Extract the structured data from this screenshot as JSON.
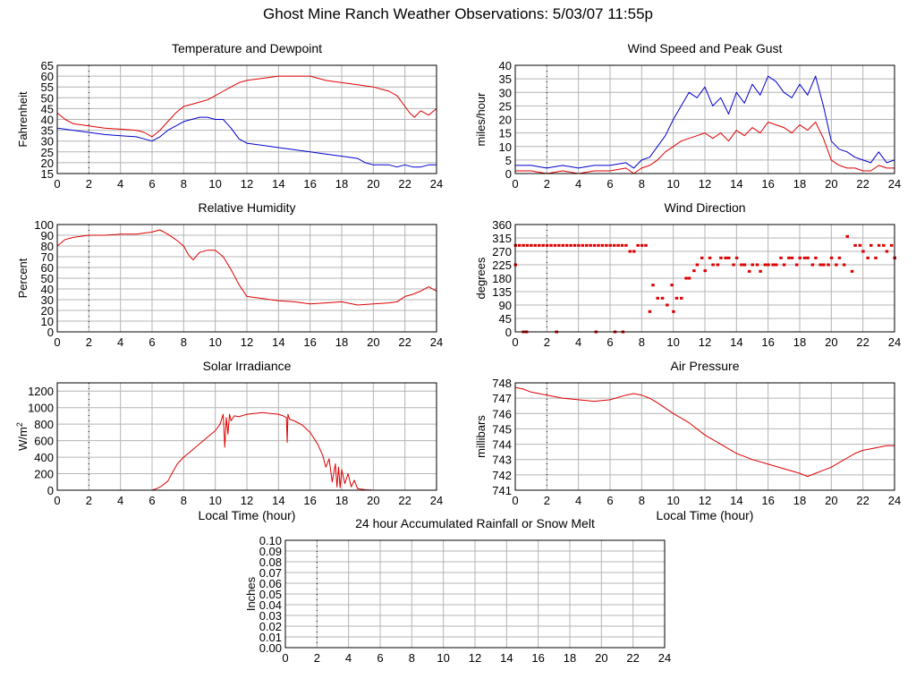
{
  "page": {
    "title": "Ghost Mine Ranch Weather Observations: 5/03/07 11:55p"
  },
  "colors": {
    "red": "#dd0000",
    "blue": "#0000cc",
    "grid": "#b4b4b4"
  },
  "chart_data": [
    {
      "id": "temperature",
      "type": "line",
      "title": "Temperature and Dewpoint",
      "ylabel": "Fahrenheit",
      "xlabel": "",
      "xlim": [
        0,
        24
      ],
      "ylim": [
        15,
        65
      ],
      "xticks": [
        0,
        2,
        4,
        6,
        8,
        10,
        12,
        14,
        16,
        18,
        20,
        22,
        24
      ],
      "yticks": [
        15,
        20,
        25,
        30,
        35,
        40,
        45,
        50,
        55,
        60,
        65
      ],
      "series": [
        {
          "color": "#dd0000",
          "x": [
            0,
            0.5,
            1,
            2,
            3,
            4,
            5,
            5.5,
            6,
            6.5,
            7,
            7.5,
            8,
            8.5,
            9,
            9.5,
            10,
            10.5,
            11,
            11.5,
            12,
            13,
            14,
            15,
            16,
            17,
            18,
            19,
            20,
            20.5,
            21,
            21.5,
            21.8,
            22,
            22.3,
            22.6,
            23,
            23.5,
            24
          ],
          "y": [
            43,
            40,
            38,
            37,
            36,
            35.5,
            35,
            34,
            32,
            35,
            39,
            43,
            46,
            47,
            48,
            49,
            51,
            53,
            55,
            57,
            58,
            59,
            60,
            60,
            60,
            58,
            57,
            56,
            55,
            54,
            53,
            51,
            48,
            46,
            43,
            41,
            44,
            42,
            45
          ]
        },
        {
          "color": "#0000cc",
          "x": [
            0,
            1,
            2,
            3,
            4,
            5,
            5.5,
            6,
            6.5,
            7,
            7.5,
            8,
            8.5,
            9,
            9.5,
            10,
            10.5,
            11,
            11.5,
            12,
            13,
            14,
            15,
            16,
            17,
            18,
            19,
            19.5,
            20,
            21,
            21.5,
            22,
            22.5,
            23,
            23.5,
            24
          ],
          "y": [
            36,
            35,
            34,
            33,
            32.5,
            32,
            31,
            30,
            32,
            35,
            37,
            39,
            40,
            41,
            41,
            40,
            40,
            36,
            31,
            29,
            28,
            27,
            26,
            25,
            24,
            23,
            22,
            20,
            19,
            19,
            18,
            19,
            18,
            18,
            19,
            19
          ]
        }
      ]
    },
    {
      "id": "wind-speed",
      "type": "line",
      "title": "Wind Speed and Peak Gust",
      "ylabel": "miles/hour",
      "xlabel": "",
      "xlim": [
        0,
        24
      ],
      "ylim": [
        0,
        40
      ],
      "xticks": [
        0,
        2,
        4,
        6,
        8,
        10,
        12,
        14,
        16,
        18,
        20,
        22,
        24
      ],
      "yticks": [
        0,
        5,
        10,
        15,
        20,
        25,
        30,
        35,
        40
      ],
      "series": [
        {
          "color": "#0000cc",
          "x": [
            0,
            1,
            2,
            3,
            4,
            5,
            6,
            7,
            7.5,
            8,
            8.5,
            9,
            9.5,
            10,
            10.5,
            11,
            11.5,
            12,
            12.5,
            13,
            13.5,
            14,
            14.5,
            15,
            15.5,
            16,
            16.5,
            17,
            17.5,
            18,
            18.5,
            19,
            19.5,
            20,
            20.5,
            21,
            21.5,
            22,
            22.5,
            23,
            23.5,
            24
          ],
          "y": [
            3,
            3,
            2,
            3,
            2,
            3,
            3,
            4,
            2,
            5,
            6,
            10,
            14,
            20,
            25,
            30,
            28,
            32,
            25,
            28,
            22,
            30,
            26,
            33,
            29,
            36,
            34,
            30,
            28,
            33,
            29,
            36,
            25,
            12,
            9,
            8,
            6,
            5,
            4,
            8,
            4,
            5
          ]
        },
        {
          "color": "#dd0000",
          "x": [
            0,
            1,
            2,
            3,
            4,
            5,
            6,
            7,
            7.5,
            8,
            8.5,
            9,
            9.5,
            10,
            10.5,
            11,
            11.5,
            12,
            12.5,
            13,
            13.5,
            14,
            14.5,
            15,
            15.5,
            16,
            16.5,
            17,
            17.5,
            18,
            18.5,
            19,
            19.5,
            20,
            20.5,
            21,
            21.5,
            22,
            22.5,
            23,
            23.5,
            24
          ],
          "y": [
            1,
            1,
            0,
            1,
            0,
            1,
            1,
            2,
            0,
            2,
            3,
            5,
            8,
            10,
            12,
            13,
            14,
            15,
            13,
            15,
            12,
            16,
            14,
            17,
            15,
            19,
            18,
            17,
            15,
            18,
            16,
            19,
            13,
            5,
            3,
            2,
            2,
            1,
            1,
            3,
            2,
            2
          ]
        }
      ]
    },
    {
      "id": "humidity",
      "type": "line",
      "title": "Relative Humidity",
      "ylabel": "Percent",
      "xlabel": "",
      "xlim": [
        0,
        24
      ],
      "ylim": [
        0,
        100
      ],
      "xticks": [
        0,
        2,
        4,
        6,
        8,
        10,
        12,
        14,
        16,
        18,
        20,
        22,
        24
      ],
      "yticks": [
        0,
        10,
        20,
        30,
        40,
        50,
        60,
        70,
        80,
        90,
        100
      ],
      "series": [
        {
          "color": "#dd0000",
          "x": [
            0,
            0.5,
            1,
            2,
            3,
            4,
            5,
            6,
            6.5,
            7,
            7.5,
            8,
            8.3,
            8.6,
            9,
            9.5,
            10,
            10.5,
            11,
            11.5,
            12,
            13,
            14,
            15,
            16,
            17,
            18,
            19,
            20,
            21,
            21.5,
            22,
            22.5,
            23,
            23.5,
            24
          ],
          "y": [
            80,
            86,
            88,
            90,
            90,
            91,
            91,
            93,
            95,
            91,
            86,
            80,
            72,
            67,
            74,
            76,
            76,
            70,
            58,
            44,
            33,
            31,
            29,
            28,
            26,
            27,
            28,
            25,
            26,
            27,
            28,
            33,
            35,
            38,
            42,
            38
          ]
        }
      ]
    },
    {
      "id": "wind-direction",
      "type": "scatter",
      "title": "Wind Direction",
      "ylabel": "degrees",
      "xlabel": "",
      "xlim": [
        0,
        24
      ],
      "ylim": [
        0,
        360
      ],
      "xticks": [
        0,
        2,
        4,
        6,
        8,
        10,
        12,
        14,
        16,
        18,
        20,
        22,
        24
      ],
      "yticks": [
        0,
        45,
        90,
        135,
        180,
        225,
        270,
        315,
        360
      ],
      "series": [
        {
          "color": "#dd0000",
          "x": [
            0,
            0.25,
            0.5,
            0.75,
            1,
            1.25,
            1.5,
            1.75,
            2,
            2.25,
            2.5,
            2.75,
            3,
            3.25,
            3.5,
            3.75,
            4,
            4.25,
            4.5,
            4.75,
            5,
            5.25,
            5.5,
            5.75,
            6,
            6.25,
            6.5,
            6.75,
            7,
            7.25,
            7.5,
            7.75,
            8,
            8.25,
            0.5,
            0.7,
            2.6,
            5.1,
            6.3,
            6.8,
            8.5,
            8.7,
            9,
            9.3,
            9.6,
            9.9,
            10,
            10.2,
            10.5,
            10.8,
            11,
            11.3,
            11.5,
            11.8,
            12,
            12.3,
            12.5,
            12.8,
            13,
            13.3,
            13.5,
            13.8,
            14,
            14.3,
            14.5,
            14.8,
            15,
            15.3,
            15.5,
            15.8,
            16,
            16.3,
            16.5,
            16.8,
            17,
            17.3,
            17.5,
            17.8,
            18,
            18.3,
            18.5,
            18.8,
            19,
            19.3,
            19.5,
            19.8,
            20,
            20.3,
            20.5,
            20.8,
            21,
            21.3,
            21.5,
            21.8,
            22,
            22.3,
            22.5,
            22.8,
            23,
            23.3,
            23.5,
            23.8,
            24,
            0,
            24
          ],
          "y": [
            290,
            290,
            290,
            290,
            290,
            290,
            290,
            290,
            290,
            290,
            290,
            290,
            290,
            290,
            290,
            290,
            290,
            290,
            290,
            290,
            290,
            290,
            290,
            290,
            290,
            290,
            290,
            290,
            290,
            270,
            270,
            290,
            290,
            290,
            0,
            0,
            0,
            0,
            0,
            0,
            68,
            157,
            113,
            113,
            90,
            157,
            68,
            113,
            113,
            180,
            180,
            205,
            225,
            248,
            205,
            248,
            225,
            225,
            248,
            248,
            248,
            225,
            248,
            225,
            225,
            203,
            225,
            225,
            203,
            225,
            225,
            225,
            225,
            248,
            225,
            248,
            248,
            225,
            248,
            248,
            248,
            225,
            248,
            225,
            225,
            225,
            248,
            225,
            248,
            225,
            320,
            203,
            290,
            290,
            270,
            248,
            290,
            248,
            290,
            290,
            270,
            290,
            248,
            225,
            248
          ]
        }
      ]
    },
    {
      "id": "solar",
      "type": "line",
      "title": "Solar Irradiance",
      "ylabel": "W/m",
      "ylabel_sup": "2",
      "xlabel": "Local Time (hour)",
      "xlim": [
        0,
        24
      ],
      "ylim": [
        0,
        1300
      ],
      "xticks": [
        0,
        2,
        4,
        6,
        8,
        10,
        12,
        14,
        16,
        18,
        20,
        22,
        24
      ],
      "yticks": [
        0,
        200,
        400,
        600,
        800,
        1000,
        1200
      ],
      "series": [
        {
          "color": "#dd0000",
          "x": [
            0,
            6,
            6.3,
            6.6,
            7,
            7.3,
            7.6,
            8,
            8.5,
            9,
            9.5,
            10,
            10.3,
            10.5,
            10.6,
            10.7,
            10.8,
            10.9,
            11,
            11.2,
            11.5,
            12,
            12.5,
            13,
            13.5,
            14,
            14.3,
            14.5,
            14.55,
            14.6,
            14.7,
            15,
            15.5,
            16,
            16.5,
            16.8,
            17,
            17.2,
            17.4,
            17.6,
            17.7,
            17.8,
            17.9,
            18,
            18.2,
            18.4,
            18.6,
            18.8,
            19,
            19.5,
            20,
            24
          ],
          "y": [
            0,
            0,
            20,
            50,
            110,
            220,
            320,
            400,
            480,
            560,
            640,
            720,
            800,
            920,
            520,
            880,
            680,
            920,
            840,
            900,
            890,
            920,
            930,
            940,
            930,
            920,
            900,
            880,
            580,
            920,
            860,
            840,
            790,
            700,
            550,
            420,
            280,
            380,
            100,
            320,
            40,
            280,
            30,
            250,
            80,
            200,
            40,
            120,
            20,
            5,
            0,
            0
          ]
        }
      ]
    },
    {
      "id": "pressure",
      "type": "line",
      "title": "Air Pressure",
      "ylabel": "millibars",
      "xlabel": "Local Time (hour)",
      "xlim": [
        0,
        24
      ],
      "ylim": [
        741,
        748
      ],
      "xticks": [
        0,
        2,
        4,
        6,
        8,
        10,
        12,
        14,
        16,
        18,
        20,
        22,
        24
      ],
      "yticks": [
        741,
        742,
        743,
        744,
        745,
        746,
        747,
        748
      ],
      "series": [
        {
          "color": "#dd0000",
          "x": [
            0,
            0.5,
            1,
            2,
            3,
            4,
            5,
            6,
            7,
            7.5,
            8,
            8.5,
            9,
            10,
            11,
            12,
            13,
            14,
            15,
            16,
            17,
            18,
            18.5,
            19,
            19.5,
            20,
            20.5,
            21,
            21.5,
            22,
            22.5,
            23,
            23.5,
            24
          ],
          "y": [
            747.7,
            747.6,
            747.4,
            747.2,
            747.0,
            746.9,
            746.8,
            746.9,
            747.2,
            747.3,
            747.2,
            747.0,
            746.7,
            746.0,
            745.4,
            744.6,
            744.0,
            743.4,
            743.0,
            742.7,
            742.4,
            742.1,
            741.9,
            742.1,
            742.3,
            742.5,
            742.8,
            743.1,
            743.4,
            743.6,
            743.7,
            743.8,
            743.9,
            743.9
          ]
        }
      ]
    },
    {
      "id": "rain",
      "type": "line",
      "title": "24 hour Accumulated Rainfall or Snow Melt",
      "ylabel": "Inches",
      "xlabel": "",
      "xlim": [
        0,
        24
      ],
      "ylim": [
        0,
        0.1
      ],
      "xticks": [
        0,
        2,
        4,
        6,
        8,
        10,
        12,
        14,
        16,
        18,
        20,
        22,
        24
      ],
      "yticks": [
        0.0,
        0.01,
        0.02,
        0.03,
        0.04,
        0.05,
        0.06,
        0.07,
        0.08,
        0.09,
        0.1
      ],
      "ytick_labels": [
        "0.00",
        "0.01",
        "0.02",
        "0.03",
        "0.04",
        "0.05",
        "0.06",
        "0.07",
        "0.08",
        "0.09",
        "0.10"
      ],
      "series": [
        {
          "color": "#dd0000",
          "x": [
            0,
            24
          ],
          "y": [
            0,
            0
          ]
        }
      ]
    }
  ]
}
